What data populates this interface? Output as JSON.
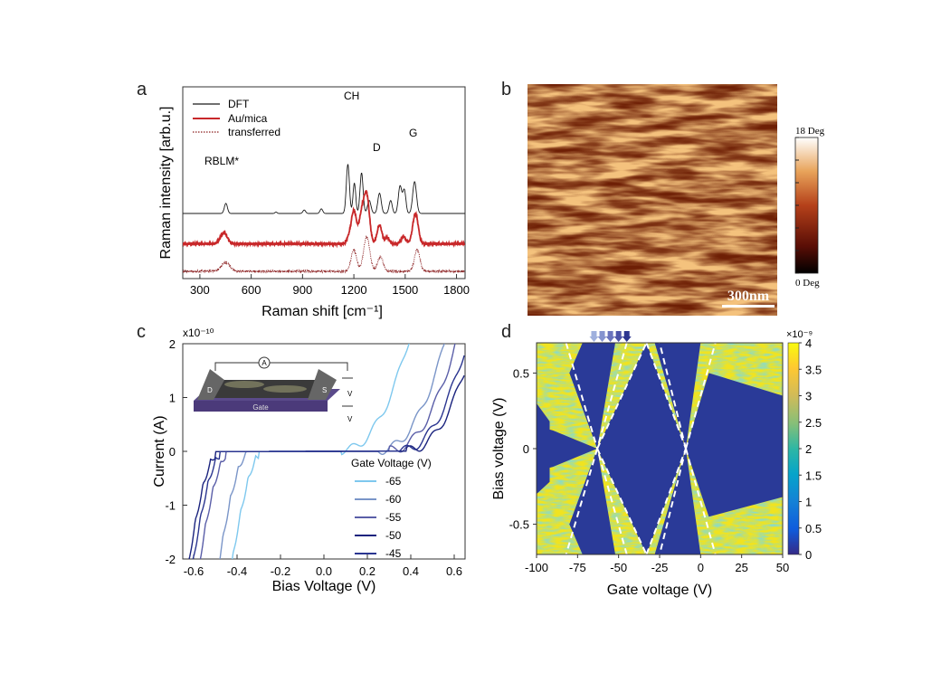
{
  "panel_labels": {
    "a": "a",
    "b": "b",
    "c": "c",
    "d": "d"
  },
  "colors": {
    "black": "#1a1a1a",
    "red": "#c8282a",
    "darkred": "#8a1d1e",
    "afm_dark": "#6e1f05",
    "afm_light": "#f2c07a"
  },
  "chart_data": [
    {
      "type": "line",
      "panel": "a",
      "xlabel": "Raman shift [cm⁻¹]",
      "ylabel": "Raman intensity [arb.u.]",
      "xlim": [
        200,
        1850
      ],
      "xticks": [
        300,
        600,
        900,
        1200,
        1500,
        1800
      ],
      "legend": "top-left",
      "annotations": [
        "RBLM*",
        "CH",
        "D",
        "G"
      ],
      "series": [
        {
          "name": "DFT",
          "color": "#1a1a1a",
          "style": "solid",
          "offset": 2.0,
          "peaks": [
            [
              452,
              0.35,
              9
            ],
            [
              745,
              0.05,
              6
            ],
            [
              910,
              0.12,
              8
            ],
            [
              1010,
              0.16,
              8
            ],
            [
              1165,
              1.7,
              9
            ],
            [
              1203,
              1.05,
              8
            ],
            [
              1245,
              1.4,
              9
            ],
            [
              1290,
              0.45,
              10
            ],
            [
              1350,
              0.7,
              10
            ],
            [
              1415,
              0.45,
              9
            ],
            [
              1470,
              0.95,
              10
            ],
            [
              1495,
              0.8,
              9
            ],
            [
              1555,
              1.1,
              11
            ]
          ]
        },
        {
          "name": "Au/mica",
          "color": "#c8282a",
          "style": "solid",
          "offset": 0.95,
          "peaks": [
            [
              440,
              0.38,
              20
            ],
            [
              1170,
              0.2,
              12
            ],
            [
              1200,
              1.15,
              15
            ],
            [
              1245,
              0.95,
              15
            ],
            [
              1275,
              1.65,
              16
            ],
            [
              1350,
              0.65,
              14
            ],
            [
              1395,
              0.22,
              12
            ],
            [
              1490,
              0.25,
              14
            ],
            [
              1560,
              1.05,
              16
            ]
          ]
        },
        {
          "name": "transferred",
          "color": "#8a1d1e",
          "style": "dotted",
          "offset": 0.0,
          "peaks": [
            [
              450,
              0.3,
              26
            ],
            [
              1200,
              0.75,
              16
            ],
            [
              1275,
              1.2,
              18
            ],
            [
              1355,
              0.5,
              16
            ],
            [
              1570,
              0.75,
              16
            ]
          ]
        }
      ]
    },
    {
      "type": "heatmap",
      "panel": "b",
      "scale_max_label": "18 Deg",
      "scale_min_label": "0 Deg",
      "scalebar_label": "300nm"
    },
    {
      "type": "line",
      "panel": "c",
      "exponent_label": "x10⁻¹⁰",
      "xlabel": "Bias Voltage (V)",
      "ylabel": "Current (A)",
      "xlim": [
        -0.65,
        0.65
      ],
      "ylim": [
        -2,
        2
      ],
      "xticks": [
        -0.6,
        -0.4,
        -0.2,
        0,
        0.2,
        0.4,
        0.6
      ],
      "xtick_labels": [
        "-0.6",
        "-0.4",
        "-0.2",
        "0.0",
        "0.2",
        "0.4",
        "0.6"
      ],
      "yticks": [
        -2,
        -1,
        0,
        1,
        2
      ],
      "legend_title": "Gate Voltage (V)",
      "inset_labels": {
        "ammeter": "A",
        "drain": "D",
        "source": "S",
        "gate": "Gate",
        "vb": "V",
        "vg": "V"
      },
      "series": [
        {
          "name": "-65",
          "color": "#7ec8ee",
          "onset_pos": 0.08,
          "onset_neg": -0.3
        },
        {
          "name": "-60",
          "color": "#7a95c8",
          "onset_pos": 0.25,
          "onset_neg": -0.36
        },
        {
          "name": "-55",
          "color": "#5a5ea8",
          "onset_pos": 0.3,
          "onset_neg": -0.45
        },
        {
          "name": "-50",
          "color": "#1a237e",
          "onset_pos": 0.38,
          "onset_neg": -0.5
        },
        {
          "name": "-45",
          "color": "#2a3590",
          "onset_pos": 0.35,
          "onset_neg": -0.48
        }
      ]
    },
    {
      "type": "heatmap",
      "panel": "d",
      "exponent_label": "×10⁻⁹",
      "xlabel": "Gate voltage (V)",
      "ylabel": "Bias voltage (V)",
      "xlim": [
        -100,
        50
      ],
      "ylim": [
        -0.7,
        0.7
      ],
      "xticks": [
        -100,
        -75,
        -50,
        -25,
        0,
        25,
        50
      ],
      "yticks": [
        -0.5,
        0,
        0.5
      ],
      "colorbar_ticks": [
        0,
        0.5,
        1,
        1.5,
        2,
        2.5,
        3,
        3.5,
        4
      ],
      "colorbar_range": [
        0,
        4
      ],
      "arrows_at_gate": [
        -65,
        -60,
        -55,
        -50,
        -45
      ],
      "arrow_colors": [
        "#9fb0dd",
        "#8593cf",
        "#6a73bd",
        "#4c52a8",
        "#2d3590"
      ],
      "diamond_crossings": [
        -63,
        -9
      ],
      "diamond_top_vertices": [
        -33
      ]
    }
  ]
}
